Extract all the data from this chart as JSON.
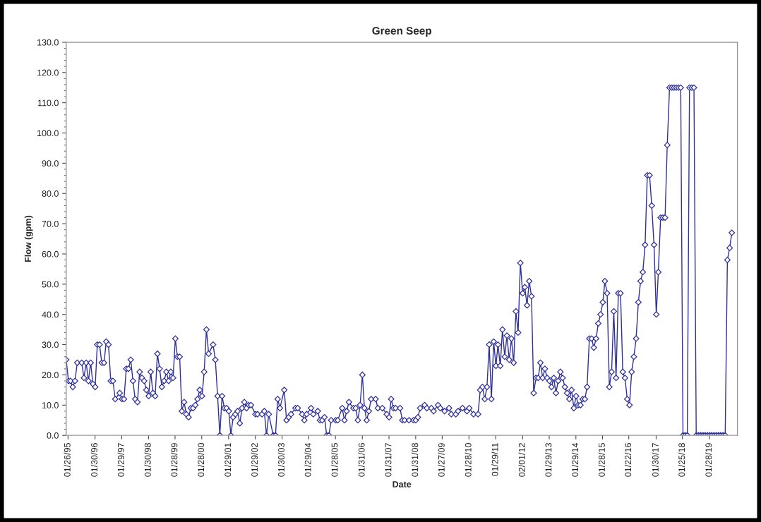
{
  "chart_data": {
    "type": "line",
    "title": "Green Seep",
    "xlabel": "Date",
    "ylabel": "Flow (gpm)",
    "marker": "diamond",
    "line_style": "solid",
    "ylim": [
      0,
      130
    ],
    "yticks": [
      {
        "value": 0,
        "label": "0.0"
      },
      {
        "value": 10,
        "label": "10.0"
      },
      {
        "value": 20,
        "label": "20.0"
      },
      {
        "value": 30,
        "label": "30.0"
      },
      {
        "value": 40,
        "label": "40.0"
      },
      {
        "value": 50,
        "label": "50.0"
      },
      {
        "value": 60,
        "label": "60.0"
      },
      {
        "value": 70,
        "label": "70.0"
      },
      {
        "value": 80,
        "label": "80.0"
      },
      {
        "value": 90,
        "label": "90.0"
      },
      {
        "value": 100,
        "label": "100.0"
      },
      {
        "value": 110,
        "label": "110.0"
      },
      {
        "value": 120,
        "label": "120.0"
      },
      {
        "value": 130,
        "label": "130.0"
      }
    ],
    "xlim": [
      "1995-01-01",
      "2020-02-15"
    ],
    "xticks": [
      {
        "value": "1995-01-26",
        "label": "01/26/95"
      },
      {
        "value": "1996-01-30",
        "label": "01/30/96"
      },
      {
        "value": "1997-01-29",
        "label": "01/29/97"
      },
      {
        "value": "1998-01-30",
        "label": "01/30/98"
      },
      {
        "value": "1999-01-28",
        "label": "01/28/99"
      },
      {
        "value": "2000-01-28",
        "label": "01/28/00"
      },
      {
        "value": "2001-01-29",
        "label": "01/29/01"
      },
      {
        "value": "2002-01-29",
        "label": "01/29/02"
      },
      {
        "value": "2003-01-30",
        "label": "01/30/03"
      },
      {
        "value": "2004-01-29",
        "label": "01/29/04"
      },
      {
        "value": "2005-01-28",
        "label": "01/28/05"
      },
      {
        "value": "2006-01-31",
        "label": "01/31/06"
      },
      {
        "value": "2007-01-31",
        "label": "01/31/07"
      },
      {
        "value": "2008-01-31",
        "label": "01/31/08"
      },
      {
        "value": "2009-01-27",
        "label": "01/27/09"
      },
      {
        "value": "2010-01-28",
        "label": "01/28/10"
      },
      {
        "value": "2011-01-29",
        "label": "01/29/11"
      },
      {
        "value": "2012-02-01",
        "label": "02/01/12"
      },
      {
        "value": "2013-01-29",
        "label": "01/29/13"
      },
      {
        "value": "2014-01-29",
        "label": "01/29/14"
      },
      {
        "value": "2015-01-28",
        "label": "01/28/15"
      },
      {
        "value": "2016-01-22",
        "label": "01/22/16"
      },
      {
        "value": "2017-01-30",
        "label": "01/30/17"
      },
      {
        "value": "2018-01-25",
        "label": "01/25/18"
      },
      {
        "value": "2019-01-28",
        "label": "01/28/19"
      }
    ],
    "series": [
      {
        "color": "#30309a",
        "x": [
          "1995-01",
          "1995-02",
          "1995-03",
          "1995-04",
          "1995-05",
          "1995-06",
          "1995-08",
          "1995-09",
          "1995-10",
          "1995-11",
          "1995-12",
          "1996-01",
          "1996-02",
          "1996-03",
          "1996-04",
          "1996-05",
          "1996-06",
          "1996-07",
          "1996-08",
          "1996-09",
          "1996-10",
          "1996-11",
          "1997-01",
          "1997-02",
          "1997-03",
          "1997-04",
          "1997-05",
          "1997-06",
          "1997-07",
          "1997-08",
          "1997-09",
          "1997-10",
          "1997-11",
          "1997-12",
          "1998-01",
          "1998-02",
          "1998-03",
          "1998-04",
          "1998-05",
          "1998-06",
          "1998-07",
          "1998-08",
          "1998-09",
          "1998-10",
          "1998-11",
          "1998-12",
          "1999-01",
          "1999-02",
          "1999-03",
          "1999-04",
          "1999-05",
          "1999-06",
          "1999-07",
          "1999-08",
          "1999-09",
          "1999-10",
          "1999-11",
          "1999-12",
          "2000-01",
          "2000-02",
          "2000-03",
          "2000-04",
          "2000-05",
          "2000-07",
          "2000-08",
          "2000-09",
          "2000-10",
          "2000-11",
          "2000-12",
          "2001-01",
          "2001-02",
          "2001-03",
          "2001-04",
          "2001-05",
          "2001-06",
          "2001-07",
          "2001-08",
          "2001-09",
          "2001-10",
          "2001-11",
          "2001-12",
          "2002-02",
          "2002-03",
          "2002-05",
          "2002-06",
          "2002-07",
          "2002-08",
          "2002-10",
          "2002-11",
          "2002-12",
          "2003-01",
          "2003-03",
          "2003-04",
          "2003-05",
          "2003-06",
          "2003-08",
          "2003-09",
          "2003-11",
          "2003-12",
          "2004-01",
          "2004-03",
          "2004-04",
          "2004-06",
          "2004-07",
          "2004-08",
          "2004-09",
          "2004-10",
          "2004-11",
          "2004-12",
          "2005-02",
          "2005-03",
          "2005-05",
          "2005-06",
          "2005-07",
          "2005-08",
          "2005-10",
          "2005-11",
          "2005-12",
          "2006-01",
          "2006-02",
          "2006-03",
          "2006-04",
          "2006-05",
          "2006-06",
          "2006-08",
          "2006-09",
          "2006-11",
          "2007-01",
          "2007-02",
          "2007-03",
          "2007-04",
          "2007-05",
          "2007-07",
          "2007-08",
          "2007-09",
          "2007-11",
          "2008-01",
          "2008-02",
          "2008-03",
          "2008-04",
          "2008-06",
          "2008-07",
          "2008-09",
          "2008-10",
          "2008-12",
          "2009-01",
          "2009-03",
          "2009-05",
          "2009-06",
          "2009-08",
          "2009-09",
          "2009-11",
          "2010-01",
          "2010-02",
          "2010-04",
          "2010-06",
          "2010-07",
          "2010-08",
          "2010-09",
          "2010-10",
          "2010-11",
          "2010-12",
          "2011-01",
          "2011-02",
          "2011-03",
          "2011-04",
          "2011-05",
          "2011-06",
          "2011-07",
          "2011-08",
          "2011-09",
          "2011-10",
          "2011-11",
          "2011-12",
          "2012-01",
          "2012-02",
          "2012-03",
          "2012-04",
          "2012-05",
          "2012-06",
          "2012-07",
          "2012-08",
          "2012-09",
          "2012-10",
          "2012-11",
          "2012-12",
          "2013-01",
          "2013-02",
          "2013-03",
          "2013-04",
          "2013-05",
          "2013-06",
          "2013-07",
          "2013-08",
          "2013-09",
          "2013-10",
          "2013-11",
          "2013-12",
          "2014-01",
          "2014-02",
          "2014-03",
          "2014-04",
          "2014-05",
          "2014-06",
          "2014-07",
          "2014-08",
          "2014-09",
          "2014-10",
          "2014-11",
          "2014-12",
          "2015-01",
          "2015-02",
          "2015-03",
          "2015-04",
          "2015-05",
          "2015-06",
          "2015-07",
          "2015-08",
          "2015-09",
          "2015-10",
          "2015-11",
          "2015-12",
          "2016-01",
          "2016-02",
          "2016-03",
          "2016-04",
          "2016-05",
          "2016-06",
          "2016-07",
          "2016-08",
          "2016-09",
          "2016-10",
          "2016-11",
          "2016-12",
          "2017-01",
          "2017-02",
          "2017-03",
          "2017-04",
          "2017-05",
          "2017-06",
          "2017-07",
          "2017-08",
          "2017-09",
          "2017-10",
          "2017-11",
          "2017-12",
          "2018-01",
          "2018-02",
          "2018-03",
          "2018-04",
          "2018-05",
          "2018-06",
          "2018-07",
          "2018-08",
          "2018-09",
          "2018-10",
          "2018-11",
          "2018-12",
          "2019-01",
          "2019-02",
          "2019-03",
          "2019-04",
          "2019-05",
          "2019-06",
          "2019-07",
          "2019-08",
          "2019-09",
          "2019-10",
          "2019-11",
          "2019-12"
        ],
        "values": [
          25,
          18,
          18,
          16,
          18,
          24,
          24,
          19,
          24,
          18,
          24,
          17,
          16,
          30,
          30,
          24,
          24,
          31,
          30,
          18,
          18,
          12,
          14,
          12,
          12,
          22,
          22,
          25,
          18,
          12,
          11,
          21,
          19,
          18,
          15,
          13,
          21,
          14,
          13,
          27,
          22,
          16,
          18,
          21,
          18,
          21,
          19,
          32,
          26,
          26,
          8,
          11,
          7,
          6,
          9,
          9,
          10,
          12,
          15,
          13,
          21,
          35,
          27,
          30,
          25,
          13,
          0,
          13,
          9,
          9,
          8,
          0,
          6,
          7,
          8,
          4,
          9,
          11,
          9,
          10,
          10,
          7,
          7,
          7,
          8,
          0,
          7,
          0,
          0,
          12,
          9,
          15,
          5,
          6,
          7,
          9,
          9,
          7,
          5,
          7,
          9,
          7,
          8,
          5,
          5,
          6,
          0,
          0,
          5,
          5,
          5,
          9,
          5,
          8,
          11,
          9,
          9,
          5,
          10,
          20,
          9,
          5,
          8,
          12,
          12,
          9,
          9,
          7,
          6,
          12,
          9,
          9,
          9,
          5,
          5,
          5,
          5,
          5,
          6,
          9,
          10,
          9,
          9,
          8,
          10,
          9,
          8,
          9,
          7,
          7,
          8,
          9,
          8,
          9,
          7,
          7,
          15,
          16,
          12,
          16,
          30,
          12,
          31,
          23,
          30,
          23,
          35,
          26,
          33,
          25,
          32,
          24,
          41,
          34,
          57,
          47,
          49,
          43,
          51,
          46,
          14,
          19,
          19,
          24,
          19,
          22,
          19,
          18,
          16,
          19,
          14,
          18,
          21,
          19,
          16,
          14,
          12,
          15,
          9,
          13,
          10,
          10,
          12,
          12,
          16,
          32,
          32,
          29,
          32,
          37,
          40,
          44,
          51,
          47,
          16,
          21,
          41,
          19,
          47,
          47,
          21,
          19,
          12,
          10,
          21,
          26,
          32,
          44,
          51,
          54,
          63,
          86,
          86,
          76,
          63,
          40,
          54,
          72,
          72,
          72,
          96,
          115,
          115,
          115,
          115,
          115,
          115,
          0,
          0,
          0,
          115,
          115,
          115,
          0,
          0,
          0,
          0,
          0,
          0,
          0,
          0,
          0,
          0,
          0,
          0,
          0,
          0,
          58,
          62,
          67
        ]
      }
    ]
  }
}
